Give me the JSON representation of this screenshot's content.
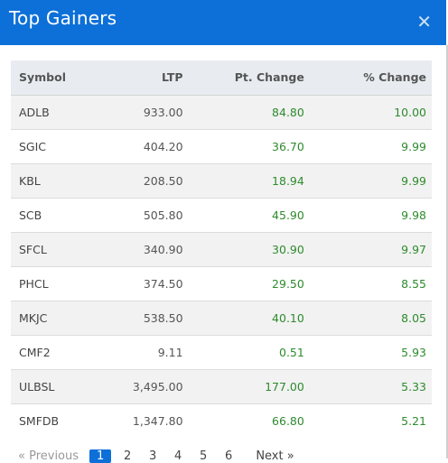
{
  "modal": {
    "title": "Top Gainers",
    "close_glyph": "✕"
  },
  "table": {
    "headers": {
      "symbol": "Symbol",
      "ltp": "LTP",
      "pt_change": "Pt. Change",
      "pct_change": "% Change"
    },
    "rows": [
      {
        "symbol": "ADLB",
        "ltp": "933.00",
        "pt": "84.80",
        "pct": "10.00"
      },
      {
        "symbol": "SGIC",
        "ltp": "404.20",
        "pt": "36.70",
        "pct": "9.99"
      },
      {
        "symbol": "KBL",
        "ltp": "208.50",
        "pt": "18.94",
        "pct": "9.99"
      },
      {
        "symbol": "SCB",
        "ltp": "505.80",
        "pt": "45.90",
        "pct": "9.98"
      },
      {
        "symbol": "SFCL",
        "ltp": "340.90",
        "pt": "30.90",
        "pct": "9.97"
      },
      {
        "symbol": "PHCL",
        "ltp": "374.50",
        "pt": "29.50",
        "pct": "8.55"
      },
      {
        "symbol": "MKJC",
        "ltp": "538.50",
        "pt": "40.10",
        "pct": "8.05"
      },
      {
        "symbol": "CMF2",
        "ltp": "9.11",
        "pt": "0.51",
        "pct": "5.93"
      },
      {
        "symbol": "ULBSL",
        "ltp": "3,495.00",
        "pt": "177.00",
        "pct": "5.33"
      },
      {
        "symbol": "SMFDB",
        "ltp": "1,347.80",
        "pt": "66.80",
        "pct": "5.21"
      }
    ]
  },
  "pagination": {
    "prev": "« Previous",
    "pages": [
      "1",
      "2",
      "3",
      "4",
      "5",
      "6"
    ],
    "active": "1",
    "next": "Next »"
  },
  "colors": {
    "header_bg": "#0d70d8",
    "positive": "#2e8b2e"
  }
}
